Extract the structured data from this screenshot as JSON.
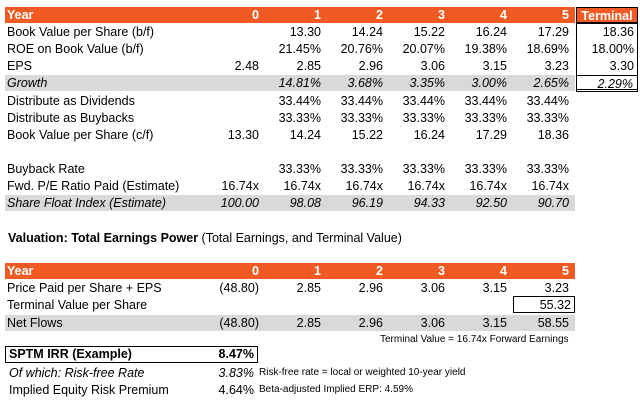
{
  "table1": {
    "header": [
      "Year",
      "0",
      "1",
      "2",
      "3",
      "4",
      "5",
      "Terminal"
    ],
    "rows": [
      {
        "label": "Book Value per Share (b/f)",
        "values": [
          "",
          "13.30",
          "14.24",
          "15.22",
          "16.24",
          "17.29"
        ],
        "terminal": "18.36"
      },
      {
        "label": "ROE on Book Value (b/f)",
        "values": [
          "",
          "21.45%",
          "20.76%",
          "20.07%",
          "19.38%",
          "18.69%"
        ],
        "terminal": "18.00%"
      },
      {
        "label": "EPS",
        "values": [
          "2.48",
          "2.85",
          "2.96",
          "3.06",
          "3.15",
          "3.23"
        ],
        "terminal": "3.30"
      },
      {
        "label": "Growth",
        "values": [
          "",
          "14.81%",
          "3.68%",
          "3.35%",
          "3.00%",
          "2.65%"
        ],
        "terminal": "2.29%"
      },
      {
        "label": "Distribute as Dividends",
        "values": [
          "",
          "33.44%",
          "33.44%",
          "33.44%",
          "33.44%",
          "33.44%"
        ],
        "terminal": ""
      },
      {
        "label": "Distribute as Buybacks",
        "values": [
          "",
          "33.33%",
          "33.33%",
          "33.33%",
          "33.33%",
          "33.33%"
        ],
        "terminal": ""
      },
      {
        "label": "Book Value per Share (c/f)",
        "values": [
          "13.30",
          "14.24",
          "15.22",
          "16.24",
          "17.29",
          "18.36"
        ],
        "terminal": ""
      },
      {
        "label": "Buyback Rate",
        "values": [
          "",
          "33.33%",
          "33.33%",
          "33.33%",
          "33.33%",
          "33.33%"
        ],
        "terminal": ""
      },
      {
        "label": "Fwd. P/E Ratio Paid (Estimate)",
        "values": [
          "16.74x",
          "16.74x",
          "16.74x",
          "16.74x",
          "16.74x",
          "16.74x"
        ],
        "terminal": ""
      },
      {
        "label": "Share Float Index (Estimate)",
        "values": [
          "100.00",
          "98.08",
          "96.19",
          "94.33",
          "92.50",
          "90.70"
        ],
        "terminal": ""
      }
    ]
  },
  "section_title": {
    "bold": "Valuation:  Total Earnings Power",
    "rest": " (Total Earnings, and Terminal Value)"
  },
  "table2": {
    "header": [
      "Year",
      "0",
      "1",
      "2",
      "3",
      "4",
      "5"
    ],
    "rows": [
      {
        "label": "Price Paid per Share + EPS",
        "values": [
          "(48.80)",
          "2.85",
          "2.96",
          "3.06",
          "3.15",
          "3.23"
        ]
      },
      {
        "label": "Terminal Value per Share",
        "values": [
          "",
          "",
          "",
          "",
          "",
          "55.32"
        ]
      },
      {
        "label": "Net Flows",
        "values": [
          "(48.80)",
          "2.85",
          "2.96",
          "3.06",
          "3.15",
          "58.55"
        ]
      }
    ],
    "note": "Terminal Value = 16.74x Forward Earnings"
  },
  "summary": {
    "irr_label": "SPTM IRR (Example)",
    "irr_value": "8.47%",
    "rf_label": "Of which: Risk-free Rate",
    "rf_value": "3.83%",
    "rf_note": "Risk-free rate = local or weighted 10-year yield",
    "erp_label": "Implied Equity Risk Premium",
    "erp_value": "4.64%",
    "erp_note": "Beta-adjusted Implied ERP: 4.59%"
  },
  "colors": {
    "header_orange": "#f15a22",
    "shade_gray": "#d9d9d9"
  }
}
